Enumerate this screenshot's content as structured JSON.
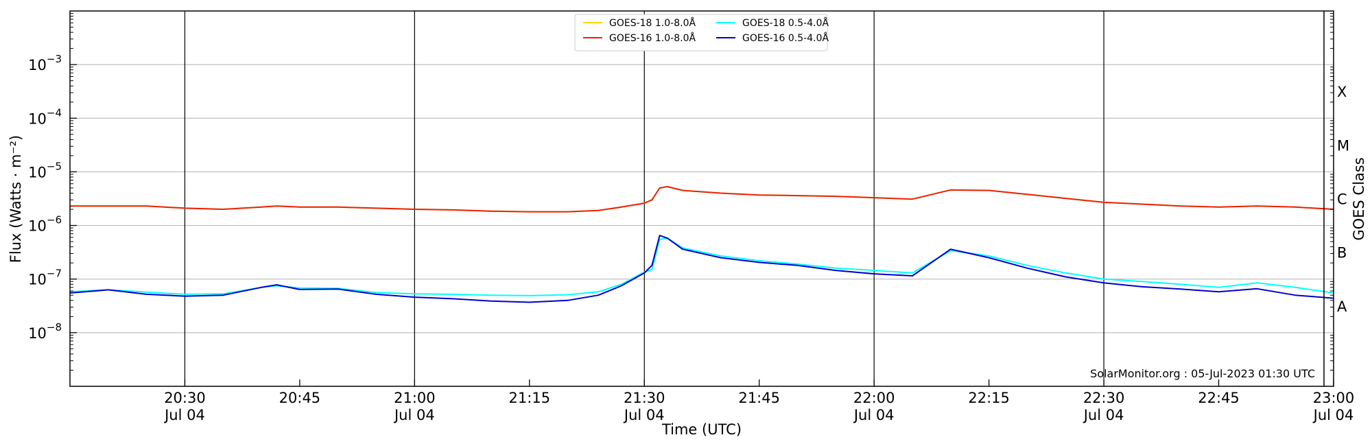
{
  "chart_data": {
    "type": "line",
    "title": "",
    "xlabel": "Time (UTC)",
    "ylabel": "Flux (Watts · m⁻²)",
    "ylabel_right": "GOES Class",
    "yscale": "log",
    "ylim": [
      1e-09,
      0.01
    ],
    "xlim": [
      "2023-07-04 20:15",
      "2023-07-04 23:00"
    ],
    "grid": "horizontal at decades",
    "legend": "top-center",
    "credit": "SolarMonitor.org : 05-Jul-2023 01:30 UTC",
    "y_ticks": [
      {
        "value": 1e-08,
        "base": "10",
        "exp": "−8"
      },
      {
        "value": 1e-07,
        "base": "10",
        "exp": "−7"
      },
      {
        "value": 1e-06,
        "base": "10",
        "exp": "−6"
      },
      {
        "value": 1e-05,
        "base": "10",
        "exp": "−5"
      },
      {
        "value": 0.0001,
        "base": "10",
        "exp": "−4"
      },
      {
        "value": 0.001,
        "base": "10",
        "exp": "−3"
      }
    ],
    "goes_classes": [
      {
        "label": "A",
        "value": 3.16e-08
      },
      {
        "label": "B",
        "value": 3.16e-07
      },
      {
        "label": "C",
        "value": 3.16e-06
      },
      {
        "label": "M",
        "value": 3.16e-05
      },
      {
        "label": "X",
        "value": 0.000316
      }
    ],
    "x_ticks": [
      {
        "time": "2023-07-04 20:30",
        "label": "20:30",
        "sublabel": "Jul 04",
        "vline": true
      },
      {
        "time": "2023-07-04 20:45",
        "label": "20:45",
        "sublabel": "",
        "vline": false
      },
      {
        "time": "2023-07-04 21:00",
        "label": "21:00",
        "sublabel": "Jul 04",
        "vline": true
      },
      {
        "time": "2023-07-04 21:15",
        "label": "21:15",
        "sublabel": "",
        "vline": false
      },
      {
        "time": "2023-07-04 21:30",
        "label": "21:30",
        "sublabel": "Jul 04",
        "vline": true
      },
      {
        "time": "2023-07-04 21:45",
        "label": "21:45",
        "sublabel": "",
        "vline": false
      },
      {
        "time": "2023-07-04 22:00",
        "label": "22:00",
        "sublabel": "Jul 04",
        "vline": true
      },
      {
        "time": "2023-07-04 22:15",
        "label": "22:15",
        "sublabel": "",
        "vline": false
      },
      {
        "time": "2023-07-04 22:30",
        "label": "22:30",
        "sublabel": "Jul 04",
        "vline": true
      },
      {
        "time": "2023-07-04 22:45",
        "label": "22:45",
        "sublabel": "",
        "vline": false
      },
      {
        "time": "2023-07-04 23:00",
        "label": "23:00",
        "sublabel": "Jul 04",
        "vline": true
      }
    ],
    "x": [
      "2023-07-04 20:15",
      "2023-07-04 20:20",
      "2023-07-04 20:25",
      "2023-07-04 20:30",
      "2023-07-04 20:35",
      "2023-07-04 20:40",
      "2023-07-04 20:42",
      "2023-07-04 20:45",
      "2023-07-04 20:50",
      "2023-07-04 20:55",
      "2023-07-04 21:00",
      "2023-07-04 21:05",
      "2023-07-04 21:10",
      "2023-07-04 21:15",
      "2023-07-04 21:20",
      "2023-07-04 21:24",
      "2023-07-04 21:27",
      "2023-07-04 21:30",
      "2023-07-04 21:31",
      "2023-07-04 21:32",
      "2023-07-04 21:33",
      "2023-07-04 21:35",
      "2023-07-04 21:40",
      "2023-07-04 21:45",
      "2023-07-04 21:50",
      "2023-07-04 21:55",
      "2023-07-04 22:00",
      "2023-07-04 22:05",
      "2023-07-04 22:10",
      "2023-07-04 22:15",
      "2023-07-04 22:20",
      "2023-07-04 22:25",
      "2023-07-04 22:30",
      "2023-07-04 22:35",
      "2023-07-04 22:40",
      "2023-07-04 22:45",
      "2023-07-04 22:50",
      "2023-07-04 22:55",
      "2023-07-04 23:00"
    ],
    "series": [
      {
        "name": "GOES-18 1.0-8.0Å",
        "color": "#ffd700",
        "values": [
          2.3e-06,
          2.3e-06,
          2.3e-06,
          2.1e-06,
          2e-06,
          2.2e-06,
          2.3e-06,
          2.2e-06,
          2.2e-06,
          2.1e-06,
          2e-06,
          1.95e-06,
          1.85e-06,
          1.8e-06,
          1.8e-06,
          1.9e-06,
          2.2e-06,
          2.6e-06,
          3e-06,
          5e-06,
          5.3e-06,
          4.5e-06,
          4e-06,
          3.7e-06,
          3.6e-06,
          3.5e-06,
          3.3e-06,
          3.1e-06,
          4.6e-06,
          4.5e-06,
          3.8e-06,
          3.2e-06,
          2.7e-06,
          2.5e-06,
          2.3e-06,
          2.2e-06,
          2.3e-06,
          2.2e-06,
          2e-06
        ]
      },
      {
        "name": "GOES-16 1.0-8.0Å",
        "color": "#e8220a",
        "values": [
          2.3e-06,
          2.3e-06,
          2.3e-06,
          2.1e-06,
          2e-06,
          2.2e-06,
          2.3e-06,
          2.2e-06,
          2.2e-06,
          2.1e-06,
          2e-06,
          1.95e-06,
          1.85e-06,
          1.8e-06,
          1.8e-06,
          1.9e-06,
          2.2e-06,
          2.6e-06,
          3e-06,
          5e-06,
          5.3e-06,
          4.5e-06,
          4e-06,
          3.7e-06,
          3.6e-06,
          3.5e-06,
          3.3e-06,
          3.1e-06,
          4.6e-06,
          4.5e-06,
          3.8e-06,
          3.2e-06,
          2.7e-06,
          2.5e-06,
          2.3e-06,
          2.2e-06,
          2.3e-06,
          2.2e-06,
          2e-06
        ]
      },
      {
        "name": "GOES-18 0.5-4.0Å",
        "color": "#00ffff",
        "values": [
          5.8e-08,
          6.3e-08,
          5.7e-08,
          5.2e-08,
          5.3e-08,
          7e-08,
          7.5e-08,
          6.8e-08,
          6.7e-08,
          5.6e-08,
          5.3e-08,
          5.2e-08,
          5e-08,
          4.9e-08,
          5.1e-08,
          5.8e-08,
          8e-08,
          1.35e-07,
          1.5e-07,
          5.5e-07,
          5.8e-07,
          3.8e-07,
          2.7e-07,
          2.2e-07,
          1.9e-07,
          1.6e-07,
          1.45e-07,
          1.3e-07,
          3.4e-07,
          2.7e-07,
          1.8e-07,
          1.3e-07,
          1e-07,
          9e-08,
          8e-08,
          7e-08,
          8.5e-08,
          7e-08,
          5.5e-08
        ]
      },
      {
        "name": "GOES-16 0.5-4.0Å",
        "color": "#0000cd",
        "values": [
          5.5e-08,
          6.3e-08,
          5.2e-08,
          4.8e-08,
          5e-08,
          7e-08,
          7.8e-08,
          6.4e-08,
          6.5e-08,
          5.2e-08,
          4.6e-08,
          4.3e-08,
          3.9e-08,
          3.7e-08,
          4e-08,
          5e-08,
          7.5e-08,
          1.3e-07,
          1.8e-07,
          6.5e-07,
          5.8e-07,
          3.6e-07,
          2.5e-07,
          2.05e-07,
          1.8e-07,
          1.45e-07,
          1.25e-07,
          1.15e-07,
          3.6e-07,
          2.5e-07,
          1.6e-07,
          1.1e-07,
          8.5e-08,
          7.2e-08,
          6.5e-08,
          5.8e-08,
          6.6e-08,
          5e-08,
          4.4e-08
        ]
      }
    ]
  }
}
